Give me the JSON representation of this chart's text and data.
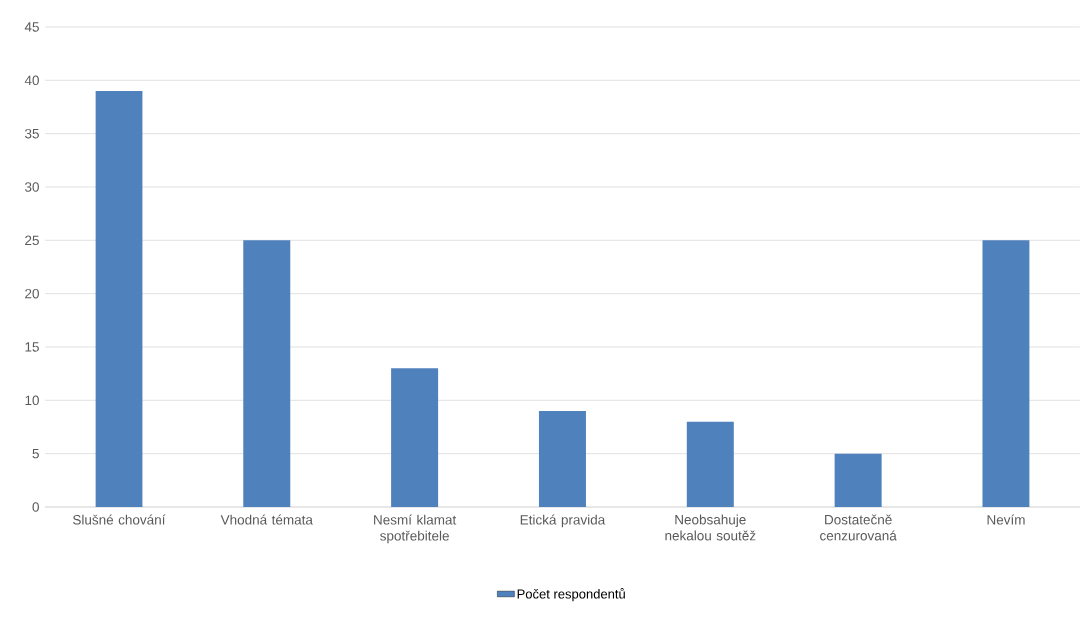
{
  "chart_data": {
    "type": "bar",
    "categories": [
      "Slušné chování",
      "Vhodná témata",
      "Nesmí klamat spotřebitele",
      "Etická pravida",
      "Neobsahuje nekalou soutěž",
      "Dostatečně cenzurovaná",
      "Nevím"
    ],
    "series": [
      {
        "name": "Počet respondentů",
        "color": "#4f81bd",
        "values": [
          39,
          25,
          13,
          9,
          8,
          5,
          25
        ]
      }
    ],
    "ylim": [
      0,
      45
    ],
    "yticks": [
      0,
      5,
      10,
      15,
      20,
      25,
      30,
      35,
      40,
      45
    ],
    "grid": "y",
    "legend": "bottom"
  }
}
